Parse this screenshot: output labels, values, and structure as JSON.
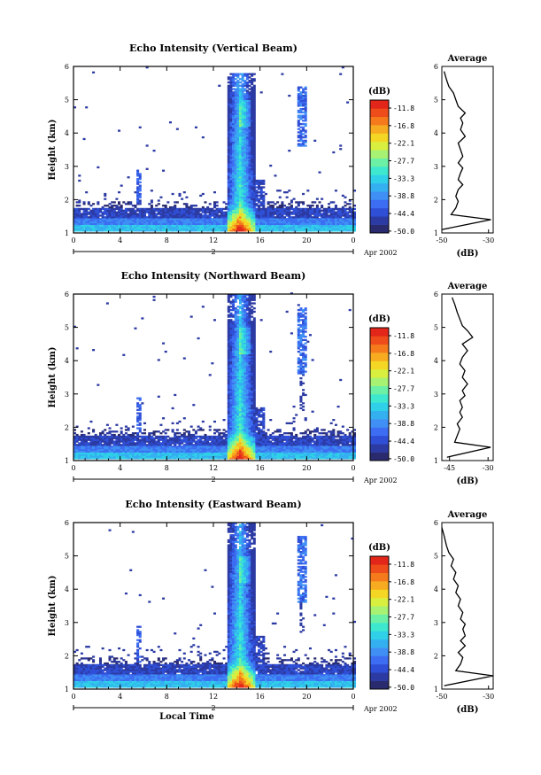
{
  "chart_data": [
    {
      "type": "heatmap",
      "title": "Echo Intensity (Vertical Beam)",
      "xlabel": "",
      "ylabel": "Height (km)",
      "x_ticks": [
        "0",
        "4",
        "8",
        "12",
        "16",
        "20",
        "0"
      ],
      "y_ticks": [
        "1",
        "2",
        "3",
        "4",
        "5",
        "6"
      ],
      "xlim": [
        0,
        24
      ],
      "ylim": [
        1,
        6
      ],
      "date_marker": "2",
      "date_label": "Apr 2002",
      "colorbar": {
        "unit": "(dB)",
        "labels": [
          "-11.8",
          "-16.8",
          "-22.1",
          "-27.7",
          "-33.3",
          "-38.8",
          "-44.4",
          "-50.0"
        ]
      },
      "average": {
        "title": "Average",
        "xlabel": "(dB)",
        "x_ticks": [
          "-50",
          "-30"
        ],
        "xlim": [
          -50,
          -28
        ],
        "profile": [
          [
            -50,
            1.1
          ],
          [
            -29,
            1.4
          ],
          [
            -46,
            1.55
          ],
          [
            -44,
            1.75
          ],
          [
            -43,
            1.95
          ],
          [
            -44,
            2.1
          ],
          [
            -43,
            2.3
          ],
          [
            -41,
            2.45
          ],
          [
            -43,
            2.6
          ],
          [
            -42,
            2.8
          ],
          [
            -41,
            2.95
          ],
          [
            -43,
            3.1
          ],
          [
            -41,
            3.3
          ],
          [
            -42,
            3.5
          ],
          [
            -43,
            3.7
          ],
          [
            -40,
            3.9
          ],
          [
            -42,
            4.1
          ],
          [
            -41,
            4.3
          ],
          [
            -42,
            4.45
          ],
          [
            -40,
            4.6
          ],
          [
            -43,
            4.8
          ],
          [
            -44,
            5.0
          ],
          [
            -45,
            5.2
          ],
          [
            -47,
            5.4
          ],
          [
            -48,
            5.6
          ],
          [
            -49,
            5.85
          ]
        ]
      }
    },
    {
      "type": "heatmap",
      "title": "Echo Intensity (Northward Beam)",
      "xlabel": "",
      "ylabel": "Height (km)",
      "x_ticks": [
        "0",
        "4",
        "8",
        "12",
        "16",
        "20",
        "0"
      ],
      "y_ticks": [
        "1",
        "2",
        "3",
        "4",
        "5",
        "6"
      ],
      "xlim": [
        0,
        24
      ],
      "ylim": [
        1,
        6
      ],
      "date_marker": "2",
      "date_label": "Apr 2002",
      "colorbar": {
        "unit": "(dB)",
        "labels": [
          "-11.8",
          "-16.8",
          "-22.1",
          "-27.7",
          "-33.3",
          "-38.8",
          "-44.4",
          "-50.0"
        ]
      },
      "average": {
        "title": "Average",
        "xlabel": "(dB)",
        "x_ticks": [
          "-45",
          "-30"
        ],
        "xlim": [
          -48,
          -28
        ],
        "profile": [
          [
            -46,
            1.1
          ],
          [
            -29,
            1.4
          ],
          [
            -43,
            1.55
          ],
          [
            -42,
            1.75
          ],
          [
            -41,
            1.95
          ],
          [
            -42,
            2.1
          ],
          [
            -40,
            2.3
          ],
          [
            -41,
            2.45
          ],
          [
            -40,
            2.6
          ],
          [
            -41,
            2.8
          ],
          [
            -39,
            2.95
          ],
          [
            -40,
            3.1
          ],
          [
            -38,
            3.3
          ],
          [
            -40,
            3.5
          ],
          [
            -39,
            3.7
          ],
          [
            -41,
            3.9
          ],
          [
            -40,
            4.1
          ],
          [
            -38,
            4.3
          ],
          [
            -40,
            4.5
          ],
          [
            -36,
            4.7
          ],
          [
            -38,
            4.9
          ],
          [
            -40,
            5.05
          ],
          [
            -41,
            5.25
          ],
          [
            -42,
            5.45
          ],
          [
            -43,
            5.7
          ],
          [
            -44,
            5.9
          ]
        ]
      }
    },
    {
      "type": "heatmap",
      "title": "Echo Intensity (Eastward Beam)",
      "xlabel": "Local Time",
      "ylabel": "Height (km)",
      "x_ticks": [
        "0",
        "4",
        "8",
        "12",
        "16",
        "20",
        "0"
      ],
      "y_ticks": [
        "1",
        "2",
        "3",
        "4",
        "5",
        "6"
      ],
      "xlim": [
        0,
        24
      ],
      "ylim": [
        1,
        6
      ],
      "date_marker": "2",
      "date_label": "Apr 2002",
      "colorbar": {
        "unit": "(dB)",
        "labels": [
          "-11.8",
          "-16.8",
          "-22.1",
          "-27.7",
          "-33.3",
          "-38.8",
          "-44.4",
          "-50.0"
        ]
      },
      "average": {
        "title": "Average",
        "xlabel": "(dB)",
        "x_ticks": [
          "-50",
          "-30"
        ],
        "xlim": [
          -50,
          -28
        ],
        "profile": [
          [
            -49,
            1.1
          ],
          [
            -28,
            1.4
          ],
          [
            -44,
            1.55
          ],
          [
            -42,
            1.75
          ],
          [
            -41,
            1.95
          ],
          [
            -43,
            2.1
          ],
          [
            -40,
            2.3
          ],
          [
            -42,
            2.45
          ],
          [
            -40,
            2.6
          ],
          [
            -41,
            2.8
          ],
          [
            -40,
            2.95
          ],
          [
            -42,
            3.1
          ],
          [
            -41,
            3.3
          ],
          [
            -43,
            3.5
          ],
          [
            -42,
            3.7
          ],
          [
            -44,
            3.9
          ],
          [
            -43,
            4.1
          ],
          [
            -45,
            4.3
          ],
          [
            -44,
            4.5
          ],
          [
            -46,
            4.7
          ],
          [
            -45,
            4.9
          ],
          [
            -47,
            5.1
          ],
          [
            -48,
            5.3
          ],
          [
            -49,
            5.6
          ],
          [
            -50,
            5.85
          ]
        ]
      }
    }
  ]
}
